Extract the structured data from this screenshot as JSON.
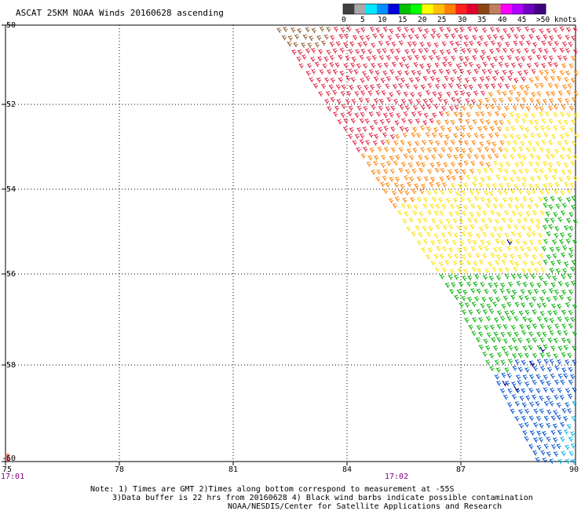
{
  "title": "ASCAT 25KM NOAA Winds 20160628 ascending",
  "colorbar": {
    "colors": [
      "#404040",
      "#a8a8a8",
      "#00e8ff",
      "#0090ff",
      "#0000d8",
      "#00c000",
      "#00ff00",
      "#ffff00",
      "#ffc000",
      "#ff8000",
      "#ff2020",
      "#e00030",
      "#8b4513",
      "#c08060",
      "#ff00ff",
      "#b000ff",
      "#7000c0",
      "#400080"
    ],
    "labels": [
      "0",
      "5",
      "10",
      "15",
      "20",
      "25",
      "30",
      "35",
      "40",
      "45",
      ">50 knots"
    ]
  },
  "map": {
    "lon_ticks": [
      "75",
      "78",
      "81",
      "84",
      "87",
      "90"
    ],
    "lat_ticks": [
      "-50",
      "-52",
      "-54",
      "-56",
      "-58",
      "-60"
    ],
    "time_labels": [
      "17:01",
      "17:02"
    ]
  },
  "notes": {
    "line1": "Note: 1) Times are GMT 2)Times along bottom correspond to measurement at -55S",
    "line2": "3)Data buffer is 22 hrs from 20160628 4) Black wind barbs indicate possible contamination",
    "line3": "NOAA/NESDIS/Center for Satellite Applications and Research"
  },
  "legend_colors": {
    "blue": "#0050d0",
    "cyan": "#00b8e8",
    "green": "#00b000",
    "yellow": "#ffe000",
    "orange": "#ff8000",
    "red": "#e02040",
    "brown": "#8b5a2b"
  }
}
